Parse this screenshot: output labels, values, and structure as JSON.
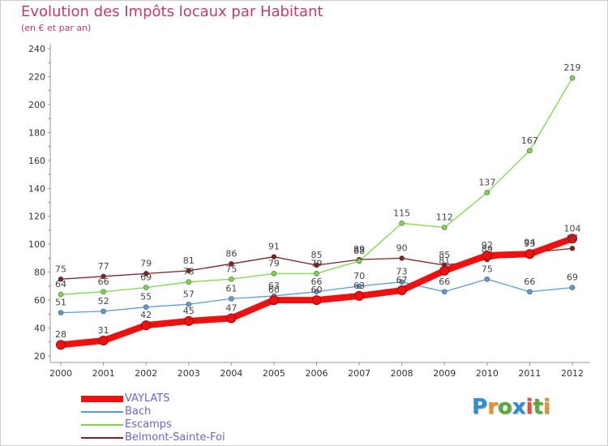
{
  "header": {
    "title": "Evolution des Impôts locaux par Habitant",
    "subtitle": "(en € et par an)"
  },
  "brand": {
    "letters": [
      "P",
      "r",
      "o",
      "x",
      "i",
      "t",
      "i"
    ],
    "colors": [
      "#2d8fd0",
      "#e8902a",
      "#5da83a",
      "#2d8fd0",
      "#e84b3a",
      "#5da83a",
      "#e8902a"
    ]
  },
  "chart_data": {
    "type": "line",
    "title": "Evolution des Impôts locaux par Habitant",
    "subtitle": "(en € et par an)",
    "xlabel": "",
    "ylabel": "",
    "x": [
      "2000",
      "2001",
      "2002",
      "2003",
      "2004",
      "2005",
      "2006",
      "2007",
      "2008",
      "2009",
      "2010",
      "2011",
      "2012"
    ],
    "ylim": [
      20,
      240
    ],
    "yticks": [
      20,
      40,
      60,
      80,
      100,
      120,
      140,
      160,
      180,
      200,
      220,
      240
    ],
    "grid": false,
    "legend_position": "bottom-left",
    "series": [
      {
        "name": "VAYLATS",
        "color": "#ee1111",
        "values": [
          28,
          31,
          42,
          45,
          47,
          60,
          60,
          63,
          67,
          81,
          92,
          93,
          104
        ],
        "labels": [
          "28",
          "31",
          "42",
          "45",
          "47",
          "60",
          "60",
          "63",
          "67",
          "81",
          "92",
          "93",
          "104"
        ]
      },
      {
        "name": "Bach",
        "color": "#5c9ad2",
        "values": [
          51,
          52,
          55,
          57,
          61,
          63,
          66,
          70,
          73,
          66,
          75,
          66,
          69
        ],
        "labels": [
          "51",
          "52",
          "55",
          "57",
          "61",
          "63",
          "66",
          "70",
          "73",
          "66",
          "75",
          "66",
          "69"
        ]
      },
      {
        "name": "Escamps",
        "color": "#7ed64a",
        "values": [
          64,
          66,
          69,
          73,
          75,
          79,
          79,
          88,
          115,
          112,
          137,
          167,
          219
        ],
        "labels": [
          "64",
          "66",
          "69",
          "73",
          "75",
          "79",
          "79",
          "88",
          "115",
          "112",
          "137",
          "167",
          "219"
        ]
      },
      {
        "name": "Belmont-Sainte-Foi",
        "color": "#7a2323",
        "values": [
          75,
          77,
          79,
          81,
          86,
          91,
          85,
          89,
          90,
          85,
          89,
          94,
          97
        ],
        "labels": [
          "75",
          "77",
          "79",
          "81",
          "86",
          "91",
          "85",
          "89",
          "90",
          "85",
          "89",
          "94",
          "97"
        ]
      }
    ]
  }
}
